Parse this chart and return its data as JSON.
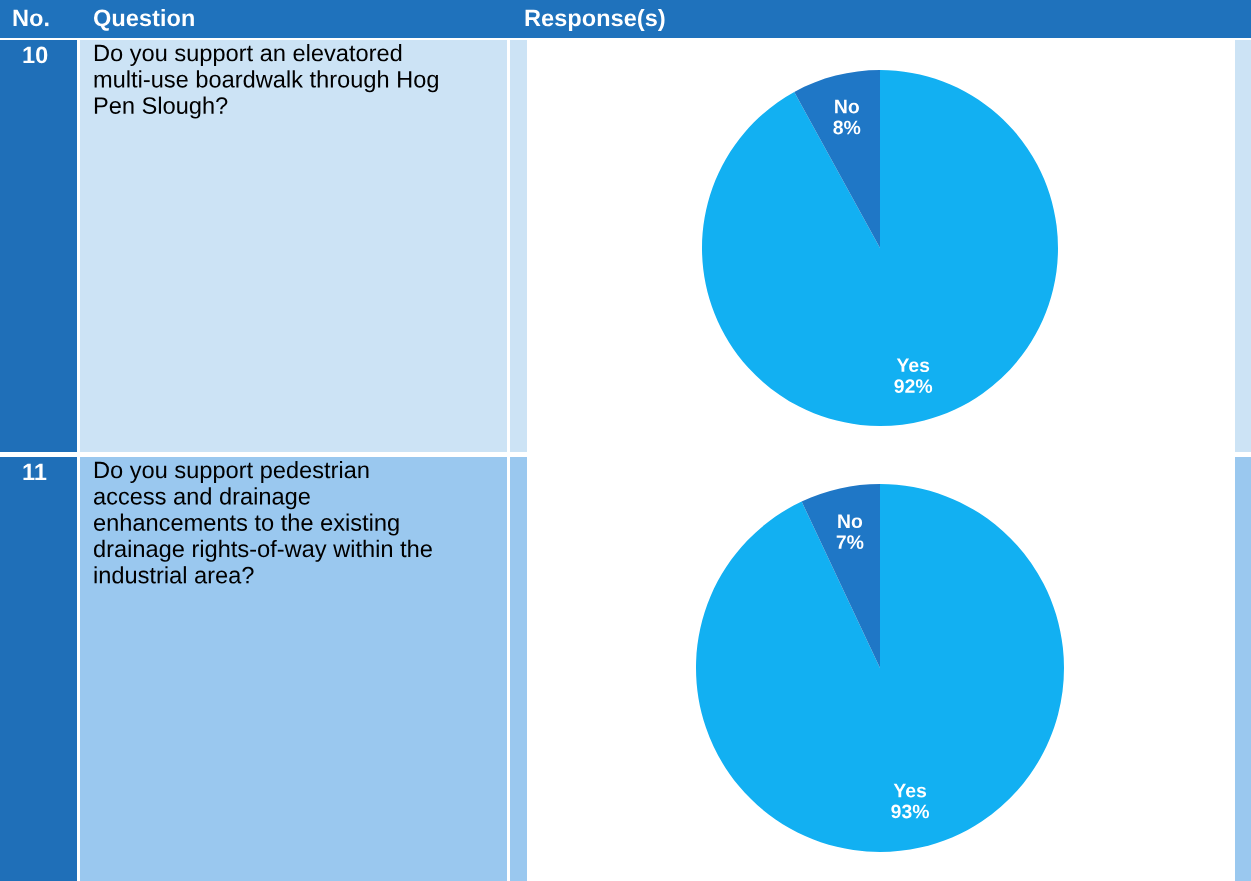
{
  "chart_data": [
    {
      "type": "pie",
      "annotations": [
        "No.",
        "Question",
        "Response(s)",
        "10",
        "Do you support an elevatored\nmulti-use boardwalk through Hog\nPen Slough?"
      ],
      "categories": [
        "Yes",
        "No"
      ],
      "values": [
        92,
        8
      ],
      "value_labels": [
        "92%",
        "8%"
      ],
      "colors": [
        "#12b0f2",
        "#1f77c6"
      ]
    },
    {
      "type": "pie",
      "annotations": [
        "11",
        "Do you support pedestrian\naccess and drainage\nenhancements to the existing\ndrainage rights-of-way within the\nindustrial area?"
      ],
      "categories": [
        "Yes",
        "No"
      ],
      "values": [
        93,
        7
      ],
      "value_labels": [
        "93%",
        "7%"
      ],
      "colors": [
        "#12b0f2",
        "#1f77c6"
      ]
    }
  ]
}
